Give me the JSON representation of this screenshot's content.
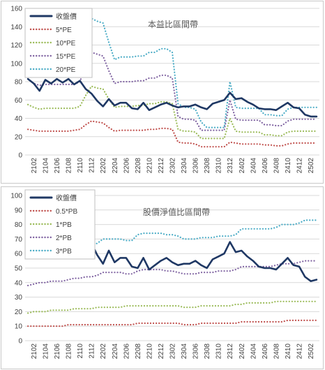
{
  "chart_data": [
    {
      "type": "line",
      "title": "本益比區間帶",
      "ylim": [
        0,
        160
      ],
      "yticks": [
        "0",
        "20",
        "40",
        "60",
        "80",
        "100",
        "120",
        "140",
        "160"
      ],
      "xticks": [
        "2102",
        "2104",
        "2106",
        "2108",
        "2110",
        "2112",
        "2202",
        "2204",
        "2206",
        "2208",
        "2210",
        "2212",
        "2302",
        "2304",
        "2306",
        "2308",
        "2310",
        "2312",
        "2402",
        "2404",
        "2406",
        "2408",
        "2410",
        "2412",
        "2502"
      ],
      "x": [
        "2101",
        "2102",
        "2103",
        "2104",
        "2105",
        "2106",
        "2107",
        "2108",
        "2109",
        "2110",
        "2111",
        "2112",
        "2201",
        "2202",
        "2203",
        "2204",
        "2205",
        "2206",
        "2207",
        "2208",
        "2209",
        "2210",
        "2211",
        "2212",
        "2301",
        "2302",
        "2303",
        "2304",
        "2305",
        "2306",
        "2307",
        "2308",
        "2309",
        "2310",
        "2311",
        "2312",
        "2401",
        "2402",
        "2403",
        "2404",
        "2405",
        "2406",
        "2407",
        "2408",
        "2409",
        "2410",
        "2411",
        "2412",
        "2501",
        "2502",
        "2503"
      ],
      "legend_position": "top-left",
      "series": [
        {
          "name": "收盤價",
          "color": "#1f3864",
          "style": "solid",
          "values": [
            83,
            78,
            70,
            82,
            78,
            83,
            79,
            83,
            77,
            81,
            72,
            67,
            59,
            53,
            61,
            54,
            57,
            57,
            51,
            50,
            57,
            49,
            52,
            55,
            57,
            54,
            52,
            53,
            53,
            55,
            52,
            50,
            56,
            58,
            60,
            68,
            61,
            62,
            58,
            55,
            51,
            50,
            50,
            49,
            53,
            57,
            52,
            51,
            44,
            42,
            42
          ]
        },
        {
          "name": "5*PE",
          "color": "#c0504d",
          "style": "dotted",
          "values": [
            28,
            27,
            26,
            26,
            26,
            26,
            26,
            26,
            27,
            28,
            33,
            37,
            36,
            35,
            30,
            26,
            27,
            27,
            27,
            27,
            27,
            28,
            28,
            29,
            29,
            28,
            14,
            13,
            13,
            12,
            9,
            9,
            9,
            9,
            9,
            14,
            13,
            12,
            12,
            12,
            12,
            11,
            11,
            10,
            10,
            12,
            13,
            13,
            13,
            13,
            13
          ]
        },
        {
          "name": "10*PE",
          "color": "#9bbb59",
          "style": "dotted",
          "values": [
            55,
            52,
            50,
            51,
            51,
            51,
            51,
            51,
            51,
            53,
            65,
            75,
            73,
            72,
            61,
            52,
            53,
            53,
            53,
            54,
            54,
            56,
            56,
            58,
            58,
            56,
            28,
            26,
            26,
            25,
            18,
            18,
            18,
            18,
            18,
            40,
            26,
            25,
            25,
            25,
            25,
            22,
            22,
            21,
            21,
            25,
            26,
            26,
            26,
            26,
            26
          ]
        },
        {
          "name": "15*PE",
          "color": "#8064a2",
          "style": "dotted",
          "values": [
            83,
            78,
            76,
            77,
            77,
            77,
            77,
            77,
            77,
            80,
            98,
            112,
            110,
            108,
            92,
            78,
            80,
            80,
            80,
            81,
            81,
            84,
            84,
            87,
            87,
            84,
            42,
            39,
            39,
            38,
            27,
            27,
            27,
            27,
            27,
            60,
            39,
            38,
            38,
            38,
            38,
            33,
            33,
            32,
            32,
            37,
            39,
            39,
            39,
            39,
            39
          ]
        },
        {
          "name": "20*PE",
          "color": "#4bacc6",
          "style": "dotted",
          "values": [
            110,
            104,
            101,
            103,
            103,
            103,
            103,
            103,
            103,
            107,
            131,
            149,
            146,
            144,
            123,
            104,
            107,
            107,
            107,
            108,
            108,
            112,
            112,
            116,
            116,
            112,
            56,
            52,
            52,
            50,
            36,
            30,
            30,
            30,
            30,
            80,
            52,
            51,
            51,
            51,
            51,
            44,
            44,
            43,
            43,
            50,
            52,
            52,
            52,
            52,
            52
          ]
        }
      ]
    },
    {
      "type": "line",
      "title": "股價淨值比區間帶",
      "ylim": [
        0,
        100
      ],
      "yticks": [
        "0",
        "10",
        "20",
        "30",
        "40",
        "50",
        "60",
        "70",
        "80",
        "90",
        "100"
      ],
      "xticks": [
        "2102",
        "2104",
        "2106",
        "2108",
        "2110",
        "2112",
        "2202",
        "2204",
        "2206",
        "2208",
        "2210",
        "2212",
        "2302",
        "2304",
        "2306",
        "2308",
        "2310",
        "2312",
        "2402",
        "2404",
        "2406",
        "2408",
        "2410",
        "2412",
        "2502"
      ],
      "x": [
        "2101",
        "2102",
        "2103",
        "2104",
        "2105",
        "2106",
        "2107",
        "2108",
        "2109",
        "2110",
        "2111",
        "2112",
        "2201",
        "2202",
        "2203",
        "2204",
        "2205",
        "2206",
        "2207",
        "2208",
        "2209",
        "2210",
        "2211",
        "2212",
        "2301",
        "2302",
        "2303",
        "2304",
        "2305",
        "2306",
        "2307",
        "2308",
        "2309",
        "2310",
        "2311",
        "2312",
        "2401",
        "2402",
        "2403",
        "2404",
        "2405",
        "2406",
        "2407",
        "2408",
        "2409",
        "2410",
        "2411",
        "2412",
        "2501",
        "2502",
        "2503"
      ],
      "legend_position": "top-left",
      "series": [
        {
          "name": "收盤價",
          "color": "#1f3864",
          "style": "solid",
          "values": [
            83,
            78,
            70,
            82,
            78,
            83,
            79,
            83,
            77,
            81,
            72,
            67,
            59,
            53,
            62,
            54,
            57,
            57,
            51,
            50,
            57,
            49,
            52,
            55,
            57,
            54,
            52,
            53,
            53,
            55,
            52,
            50,
            56,
            58,
            60,
            68,
            61,
            62,
            58,
            55,
            51,
            50,
            50,
            49,
            53,
            57,
            52,
            51,
            44,
            41,
            42
          ]
        },
        {
          "name": "0.5*PB",
          "color": "#c0504d",
          "style": "dotted",
          "values": [
            10,
            10,
            10,
            10,
            10,
            10,
            10,
            11,
            11,
            11,
            11,
            11,
            11,
            11,
            11,
            11,
            11,
            11,
            11,
            12,
            12,
            12,
            12,
            12,
            12,
            12,
            12,
            11,
            11,
            11,
            12,
            12,
            12,
            12,
            12,
            12,
            12,
            13,
            13,
            13,
            13,
            13,
            13,
            13,
            13,
            14,
            14,
            14,
            14,
            14,
            14
          ]
        },
        {
          "name": "1*PB",
          "color": "#9bbb59",
          "style": "dotted",
          "values": [
            19,
            20,
            20,
            20,
            21,
            21,
            21,
            21,
            22,
            22,
            22,
            22,
            23,
            23,
            23,
            23,
            23,
            24,
            24,
            24,
            24,
            24,
            24,
            24,
            24,
            24,
            24,
            23,
            23,
            23,
            24,
            24,
            24,
            24,
            24,
            24,
            25,
            25,
            26,
            26,
            26,
            26,
            26,
            27,
            27,
            27,
            27,
            27,
            27,
            27,
            27
          ]
        },
        {
          "name": "2*PB",
          "color": "#8064a2",
          "style": "dotted",
          "values": [
            38,
            39,
            40,
            40,
            41,
            41,
            41,
            42,
            43,
            43,
            44,
            44,
            45,
            47,
            47,
            47,
            47,
            46,
            46,
            48,
            49,
            49,
            49,
            49,
            48,
            48,
            47,
            46,
            46,
            46,
            47,
            47,
            47,
            48,
            48,
            48,
            49,
            51,
            51,
            51,
            51,
            51,
            51,
            52,
            53,
            53,
            53,
            54,
            55,
            55,
            55
          ]
        },
        {
          "name": "3*PB",
          "color": "#4bacc6",
          "style": "dotted",
          "values": [
            57,
            59,
            60,
            60,
            62,
            62,
            62,
            63,
            65,
            65,
            66,
            66,
            67,
            70,
            70,
            70,
            70,
            69,
            69,
            73,
            74,
            74,
            74,
            74,
            73,
            73,
            72,
            70,
            70,
            70,
            71,
            71,
            71,
            72,
            72,
            72,
            73,
            77,
            77,
            77,
            77,
            77,
            77,
            78,
            80,
            80,
            80,
            81,
            83,
            83,
            83
          ]
        }
      ]
    }
  ]
}
